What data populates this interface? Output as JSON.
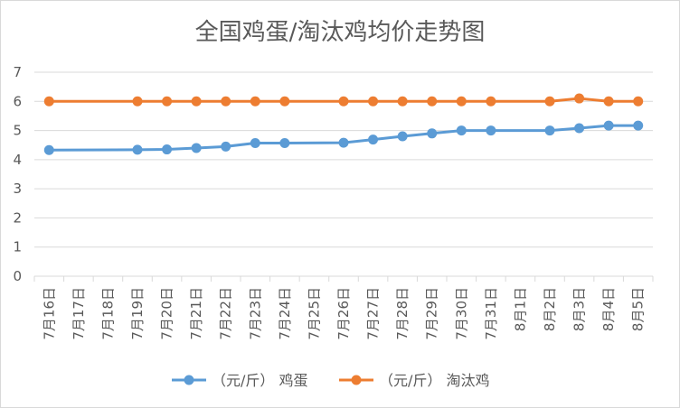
{
  "chart_data": {
    "type": "line",
    "title": "全国鸡蛋/淘汰鸡均价走势图",
    "xlabel": "",
    "ylabel": "",
    "categories": [
      "7月16日",
      "7月17日",
      "7月18日",
      "7月19日",
      "7月20日",
      "7月21日",
      "7月22日",
      "7月23日",
      "7月24日",
      "7月25日",
      "7月26日",
      "7月27日",
      "7月28日",
      "7月29日",
      "7月30日",
      "7月31日",
      "8月1日",
      "8月2日",
      "8月3日",
      "8月4日",
      "8月5日"
    ],
    "y_ticks": [
      "0",
      "1",
      "2",
      "3",
      "4",
      "5",
      "6",
      "7"
    ],
    "ylim": [
      0,
      7
    ],
    "grid": true,
    "legend_position": "bottom",
    "series": [
      {
        "name": "（元/斤） 鸡蛋",
        "color": "#5B9BD5",
        "values": [
          4.33,
          null,
          null,
          4.34,
          4.35,
          4.4,
          4.45,
          4.57,
          4.57,
          null,
          4.58,
          4.69,
          4.8,
          4.9,
          5.0,
          5.0,
          null,
          5.0,
          5.08,
          5.17,
          5.17
        ]
      },
      {
        "name": "（元/斤） 淘汰鸡",
        "color": "#ED7D31",
        "values": [
          6.0,
          null,
          null,
          6.0,
          6.0,
          6.0,
          6.0,
          6.0,
          6.0,
          null,
          6.0,
          6.0,
          6.0,
          6.0,
          6.0,
          6.0,
          null,
          6.0,
          6.1,
          6.0,
          6.0
        ]
      }
    ]
  }
}
